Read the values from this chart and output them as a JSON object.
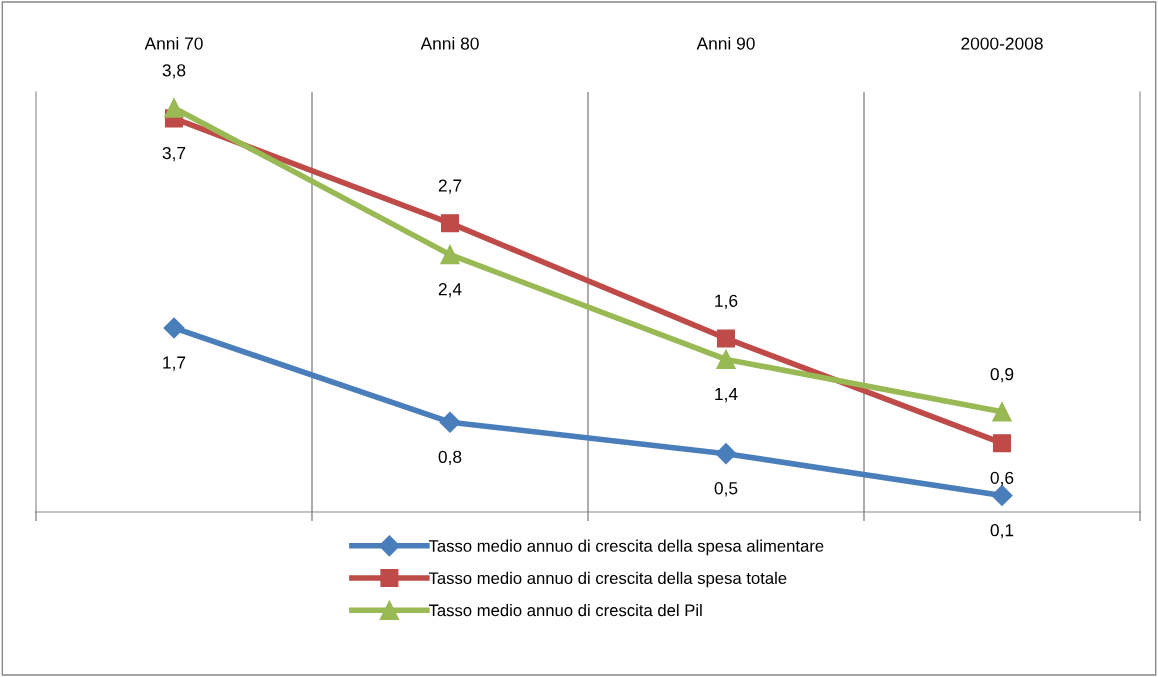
{
  "chart_data": {
    "type": "line",
    "categories": [
      "Anni 70",
      "Anni 80",
      "Anni 90",
      "2000-2008"
    ],
    "series": [
      {
        "name": "Tasso medio annuo di crescita della spesa alimentare",
        "color": "#4a7ebb",
        "marker": "diamond",
        "values": [
          1.7,
          0.8,
          0.5,
          0.1
        ],
        "value_labels": [
          "1,7",
          "0,8",
          "0,5",
          "0,1"
        ]
      },
      {
        "name": "Tasso medio annuo di crescita della spesa totale",
        "color": "#be4b48",
        "marker": "square",
        "values": [
          3.7,
          2.7,
          1.6,
          0.6
        ],
        "value_labels": [
          "3,7",
          "2,7",
          "1,6",
          "0,6"
        ]
      },
      {
        "name": "Tasso medio annuo di crescita del Pil",
        "color": "#98b954",
        "marker": "triangle",
        "values": [
          3.8,
          2.4,
          1.4,
          0.9
        ],
        "value_labels": [
          "3,8",
          "2,4",
          "1,4",
          "0,9"
        ]
      }
    ],
    "grid": "x",
    "legend": "bottom"
  }
}
